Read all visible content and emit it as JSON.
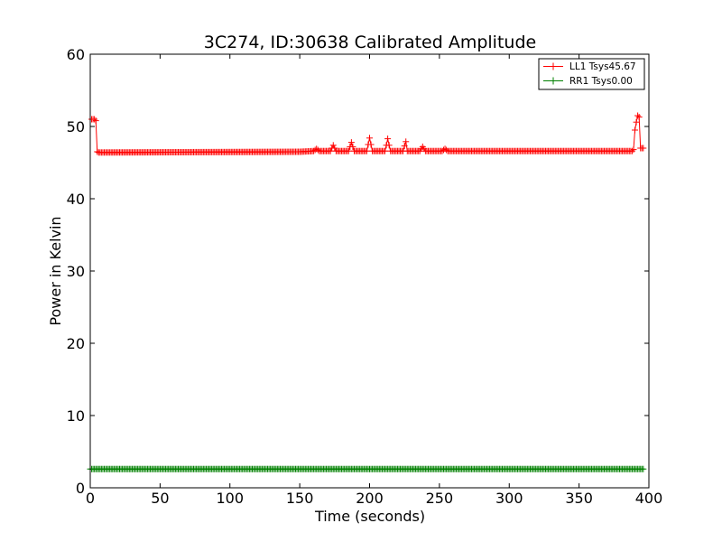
{
  "chart_data": {
    "type": "line",
    "title": "3C274, ID:30638 Calibrated Amplitude",
    "xlabel": "Time (seconds)",
    "ylabel": "Power in Kelvin",
    "xlim": [
      0,
      400
    ],
    "ylim": [
      0,
      60
    ],
    "xticks": [
      "0",
      "50",
      "100",
      "150",
      "200",
      "250",
      "300",
      "350",
      "400"
    ],
    "yticks": [
      "0",
      "10",
      "20",
      "30",
      "40",
      "50",
      "60"
    ],
    "grid": false,
    "legend_position": "top-right",
    "legend_labels": [
      "LL1 Tsys45.67",
      "RR1 Tsys0.00"
    ],
    "marker": "+",
    "colors": {
      "LL1": "#ff0000",
      "RR1": "#008000"
    },
    "series": [
      {
        "name": "LL1 Tsys45.67",
        "color": "#ff0000",
        "points": [
          [
            1,
            51.0
          ],
          [
            2,
            51.0
          ],
          [
            3,
            51.0
          ],
          [
            4,
            50.8
          ],
          [
            5,
            46.5
          ],
          [
            6,
            46.4
          ],
          [
            7,
            46.4
          ],
          [
            150,
            46.5
          ],
          [
            160,
            46.6
          ],
          [
            162,
            46.9
          ],
          [
            164,
            46.6
          ],
          [
            172,
            46.6
          ],
          [
            174,
            47.4
          ],
          [
            176,
            46.6
          ],
          [
            185,
            46.6
          ],
          [
            187,
            47.8
          ],
          [
            189,
            46.6
          ],
          [
            198,
            46.6
          ],
          [
            199,
            47.5
          ],
          [
            200,
            48.4
          ],
          [
            201,
            47.5
          ],
          [
            202,
            46.6
          ],
          [
            211,
            46.6
          ],
          [
            212,
            47.4
          ],
          [
            213,
            48.3
          ],
          [
            214,
            47.4
          ],
          [
            215,
            46.6
          ],
          [
            224,
            46.6
          ],
          [
            225,
            47.3
          ],
          [
            226,
            47.9
          ],
          [
            227,
            46.6
          ],
          [
            236,
            46.6
          ],
          [
            238,
            47.2
          ],
          [
            240,
            46.6
          ],
          [
            252,
            46.6
          ],
          [
            254,
            46.9
          ],
          [
            256,
            46.6
          ],
          [
            388,
            46.6
          ],
          [
            389,
            46.8
          ],
          [
            390,
            49.5
          ],
          [
            391,
            50.6
          ],
          [
            392,
            51.5
          ],
          [
            393,
            51.3
          ],
          [
            394,
            47.0
          ],
          [
            395,
            47.0
          ],
          [
            396,
            47.0
          ]
        ]
      },
      {
        "name": "RR1 Tsys0.00",
        "color": "#008000",
        "points": [
          [
            0,
            2.6
          ],
          [
            396,
            2.6
          ]
        ]
      }
    ]
  }
}
